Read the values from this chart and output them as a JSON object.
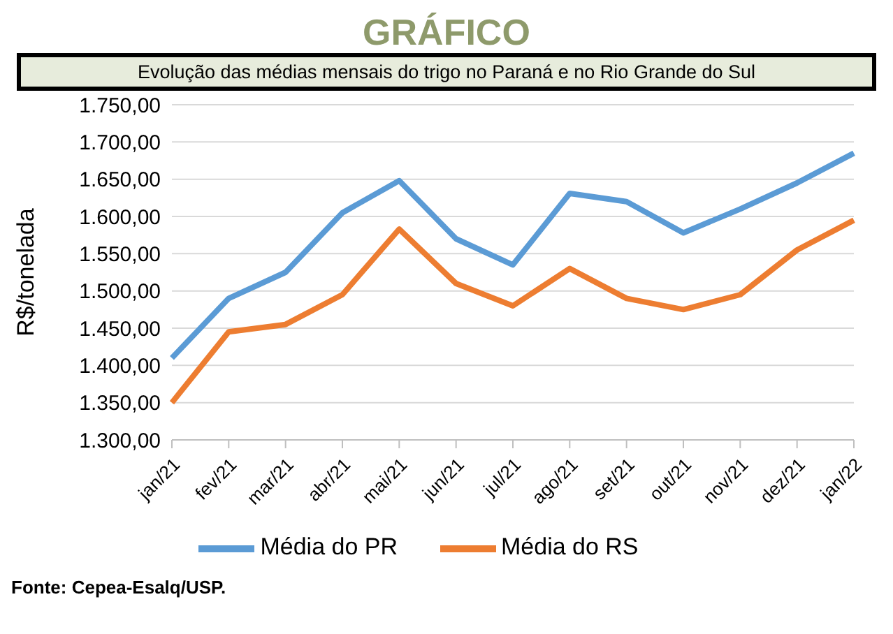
{
  "chart_data": {
    "type": "line",
    "title": "GRÁFICO",
    "subtitle": "Evolução das médias mensais do trigo no Paraná e no Rio Grande do Sul",
    "ylabel": "R$/tonelada",
    "categories": [
      "jan/21",
      "fev/21",
      "mar/21",
      "abr/21",
      "mai/21",
      "jun/21",
      "jul/21",
      "ago/21",
      "set/21",
      "out/21",
      "nov/21",
      "dez/21",
      "jan/22"
    ],
    "series": [
      {
        "name": "Média do PR",
        "color": "#5b9bd5",
        "values": [
          1410,
          1490,
          1525,
          1605,
          1648,
          1570,
          1535,
          1631,
          1620,
          1578,
          1610,
          1645,
          1685
        ]
      },
      {
        "name": "Média do RS",
        "color": "#ed7d31",
        "values": [
          1350,
          1445,
          1455,
          1495,
          1583,
          1510,
          1480,
          1530,
          1490,
          1475,
          1495,
          1555,
          1595
        ]
      }
    ],
    "ylim": [
      1300,
      1750
    ],
    "yticks": [
      {
        "value": 1300,
        "label": "1.300,00"
      },
      {
        "value": 1350,
        "label": "1.350,00"
      },
      {
        "value": 1400,
        "label": "1.400,00"
      },
      {
        "value": 1450,
        "label": "1.450,00"
      },
      {
        "value": 1500,
        "label": "1.500,00"
      },
      {
        "value": 1550,
        "label": "1.550,00"
      },
      {
        "value": 1600,
        "label": "1.600,00"
      },
      {
        "value": 1650,
        "label": "1.650,00"
      },
      {
        "value": 1700,
        "label": "1.700,00"
      },
      {
        "value": 1750,
        "label": "1.750,00"
      }
    ],
    "grid": "y",
    "legend": "bottom",
    "marker": "none",
    "line_style": "solid",
    "annotations": [
      "Fonte: Cepea-Esalq/USP."
    ]
  }
}
